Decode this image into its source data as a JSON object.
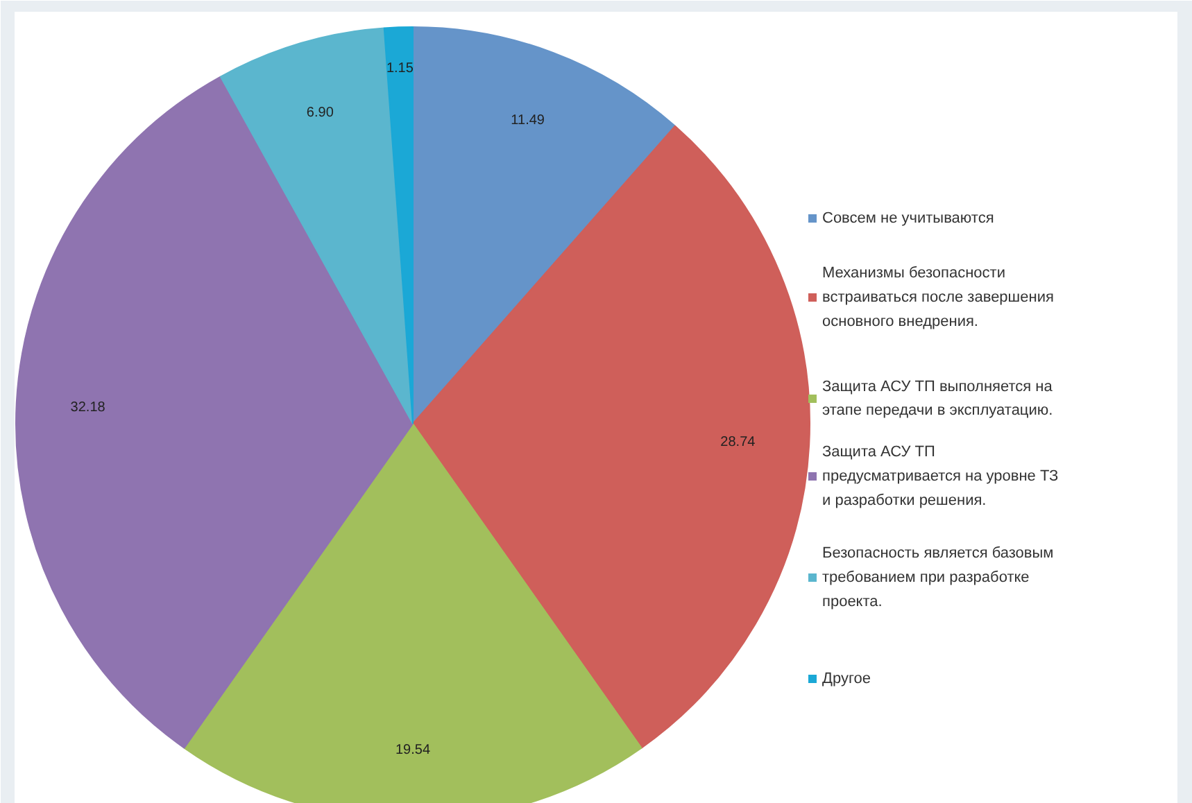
{
  "chart_data": {
    "type": "pie",
    "categories": [
      "Совсем не учитываются",
      "Механизмы безопасности встраиваться после завершения основного внедрения.",
      "Защита АСУ ТП выполняется на этапе передачи в эксплуатацию.",
      "Защита АСУ ТП предусматривается на уровне ТЗ и разработки решения.",
      "Безопасность является базовым требованием при разработке проекта.",
      "Другое"
    ],
    "values": [
      11.49,
      28.74,
      19.54,
      32.18,
      6.9,
      1.15
    ],
    "value_labels": [
      "11.49",
      "28.74",
      "19.54",
      "32.18",
      "6.90",
      "1.15"
    ],
    "colors": [
      "#6594c9",
      "#cf5f5a",
      "#a2bf5c",
      "#8f74b0",
      "#5bb6ce",
      "#1ba8d6"
    ],
    "legend": "right"
  }
}
